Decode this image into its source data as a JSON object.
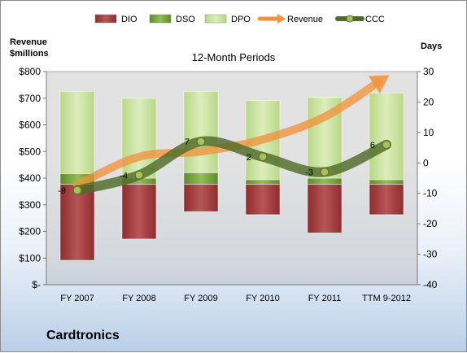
{
  "company": "Cardtronics",
  "chart_data": {
    "type": "bar",
    "subtitle": "12-Month Periods",
    "categories": [
      "FY 2007",
      "FY 2008",
      "FY 2009",
      "FY 2010",
      "FY 2011",
      "TTM 9-2012"
    ],
    "ylabel_left": [
      "Revenue",
      "$millions"
    ],
    "ylabel_right": "Days",
    "ylim_left": [
      0,
      800
    ],
    "ylim_right": [
      -40,
      30
    ],
    "yticks_left": [
      0,
      100,
      200,
      300,
      400,
      500,
      600,
      700,
      800
    ],
    "ytick_labels_left": [
      "$-",
      "$100",
      "$200",
      "$300",
      "$400",
      "$500",
      "$600",
      "$700",
      "$800"
    ],
    "yticks_right": [
      -40,
      -30,
      -20,
      -10,
      0,
      10,
      20,
      30
    ],
    "ytick_labels_right": [
      "-40",
      "-30",
      "-20",
      "-10",
      "0",
      "10",
      "20",
      "30"
    ],
    "legend": [
      "DIO",
      "DSO",
      "DPO",
      "Revenue",
      "CCC"
    ],
    "legend_position": "top",
    "series": [
      {
        "name": "DPO",
        "type": "bar",
        "color": "#a0393a",
        "bottom_days": [
          -32,
          -25,
          -16,
          -17,
          -23,
          -17
        ],
        "top_days": [
          -7,
          -7,
          -7,
          -7,
          -7,
          -7
        ]
      },
      {
        "name": "DIO",
        "type": "bar",
        "color": "#77a33c",
        "bottom_days": [
          -7,
          -7,
          -7,
          -7,
          -7,
          -7
        ],
        "top_days": [
          -3.5,
          -5.0,
          -3.2,
          -5.5,
          -5.0,
          -5.5
        ]
      },
      {
        "name": "DSO",
        "type": "bar",
        "color": "#c9e19b",
        "bottom_days": [
          -3.5,
          -5.0,
          -3.2,
          -5.5,
          -5.0,
          -5.5
        ],
        "top_days": [
          23.5,
          21.2,
          23.5,
          20.5,
          21.5,
          23.0
        ]
      },
      {
        "name": "Revenue",
        "type": "line",
        "color": "#f0933c",
        "values": [
          375,
          480,
          500,
          545,
          630,
          780
        ]
      },
      {
        "name": "CCC",
        "type": "line",
        "color": "#4f6b2a",
        "values": [
          -9,
          -4,
          7,
          2,
          -3,
          6
        ],
        "labels": [
          "-9",
          "-4",
          "7",
          "2",
          "-3",
          "6"
        ]
      }
    ],
    "grid": false
  }
}
